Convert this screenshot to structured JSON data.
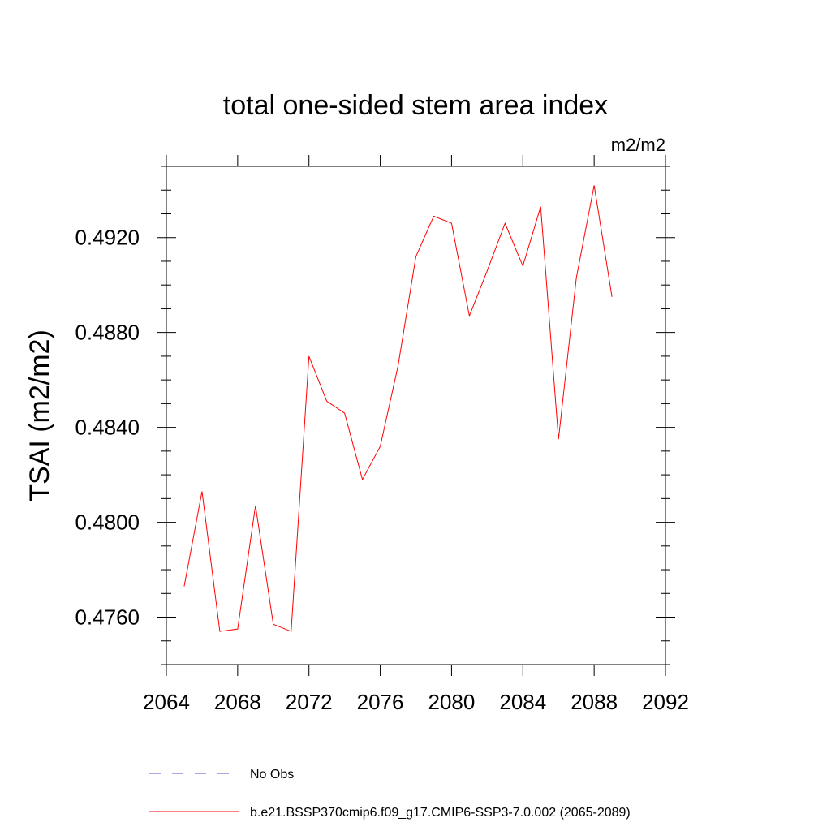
{
  "chart_data": {
    "type": "line",
    "title": "total one-sided stem area index",
    "units_label": "m2/m2",
    "ylabel": "TSAI  (m2/m2)",
    "xlabel": "",
    "xlim": [
      2064,
      2092
    ],
    "ylim": [
      0.474,
      0.495
    ],
    "x_ticks": [
      2064,
      2068,
      2072,
      2076,
      2080,
      2084,
      2088,
      2092
    ],
    "x_tick_labels": [
      "2064",
      "2068",
      "2072",
      "2076",
      "2080",
      "2084",
      "2088",
      "2092"
    ],
    "y_ticks": [
      0.476,
      0.48,
      0.484,
      0.488,
      0.492
    ],
    "y_tick_labels": [
      "0.4760",
      "0.4800",
      "0.4840",
      "0.4880",
      "0.4920"
    ],
    "grid": false,
    "series": [
      {
        "name": "b.e21.BSSP370cmip6.f09_g17.CMIP6-SSP3-7.0.002 (2065-2089)",
        "color": "#ff0000",
        "x": [
          2065,
          2066,
          2067,
          2068,
          2069,
          2070,
          2071,
          2072,
          2073,
          2074,
          2075,
          2076,
          2077,
          2078,
          2079,
          2080,
          2081,
          2082,
          2083,
          2084,
          2085,
          2086,
          2087,
          2088,
          2089
        ],
        "y": [
          0.4773,
          0.4813,
          0.4754,
          0.4755,
          0.4807,
          0.4757,
          0.4754,
          0.487,
          0.4851,
          0.4846,
          0.4818,
          0.4832,
          0.4866,
          0.4912,
          0.4929,
          0.4926,
          0.4887,
          0.4906,
          0.4926,
          0.4908,
          0.4933,
          0.4835,
          0.4903,
          0.4942,
          0.4895
        ]
      }
    ],
    "legend": {
      "placement": "bottom",
      "entries": [
        {
          "label": "No Obs",
          "color": "#5555cc",
          "style": "dashed"
        },
        {
          "label": "b.e21.BSSP370cmip6.f09_g17.CMIP6-SSP3-7.0.002 (2065-2089)",
          "color": "#ff0000",
          "style": "solid"
        }
      ]
    }
  }
}
